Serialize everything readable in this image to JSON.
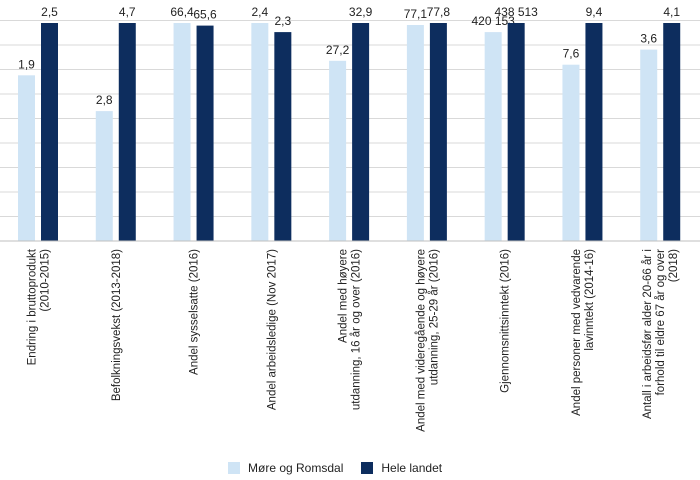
{
  "chart_data": {
    "type": "bar",
    "normalization": "each category scaled to its own maximum (Hele landet = reference)",
    "categories": [
      [
        "Endring i bruttoprodukt",
        "(2010-2015)"
      ],
      [
        "Befolkningsvekst (2013-2018)"
      ],
      [
        "Andel sysselsatte (2016)"
      ],
      [
        "Andel arbeidsledige (Nov 2017)"
      ],
      [
        "Andel med høyere",
        "utdanning, 16 år og over (2016)"
      ],
      [
        "Andel med videregående og høyere",
        "utdanning, 25-29 år (2016)"
      ],
      [
        "Gjennomsnittsinntekt (2016)"
      ],
      [
        "Andel personer med vedvarende",
        "lavinntekt (2014-16)"
      ],
      [
        "Antall i arbeidsfør alder 20-66 år i",
        "forhold til eldre 67 år og over",
        "(2018)"
      ]
    ],
    "series": [
      {
        "name": "Møre og Romsdal",
        "color": "#cfe4f5",
        "values": [
          1.9,
          2.8,
          66.4,
          2.4,
          27.2,
          77.1,
          420153,
          7.6,
          3.6
        ],
        "labels": [
          "1,9",
          "2,8",
          "66,4",
          "2,4",
          "27,2",
          "77,1",
          "420 153",
          "7,6",
          "3,6"
        ]
      },
      {
        "name": "Hele landet",
        "color": "#0d2d5e",
        "values": [
          2.5,
          4.7,
          65.6,
          2.3,
          32.9,
          77.8,
          438513,
          9.4,
          4.1
        ],
        "labels": [
          "2,5",
          "4,7",
          "65,6",
          "2,3",
          "32,9",
          "77,8",
          "438 513",
          "9,4",
          "4,1"
        ]
      }
    ],
    "grid": true,
    "legend_position": "bottom"
  }
}
